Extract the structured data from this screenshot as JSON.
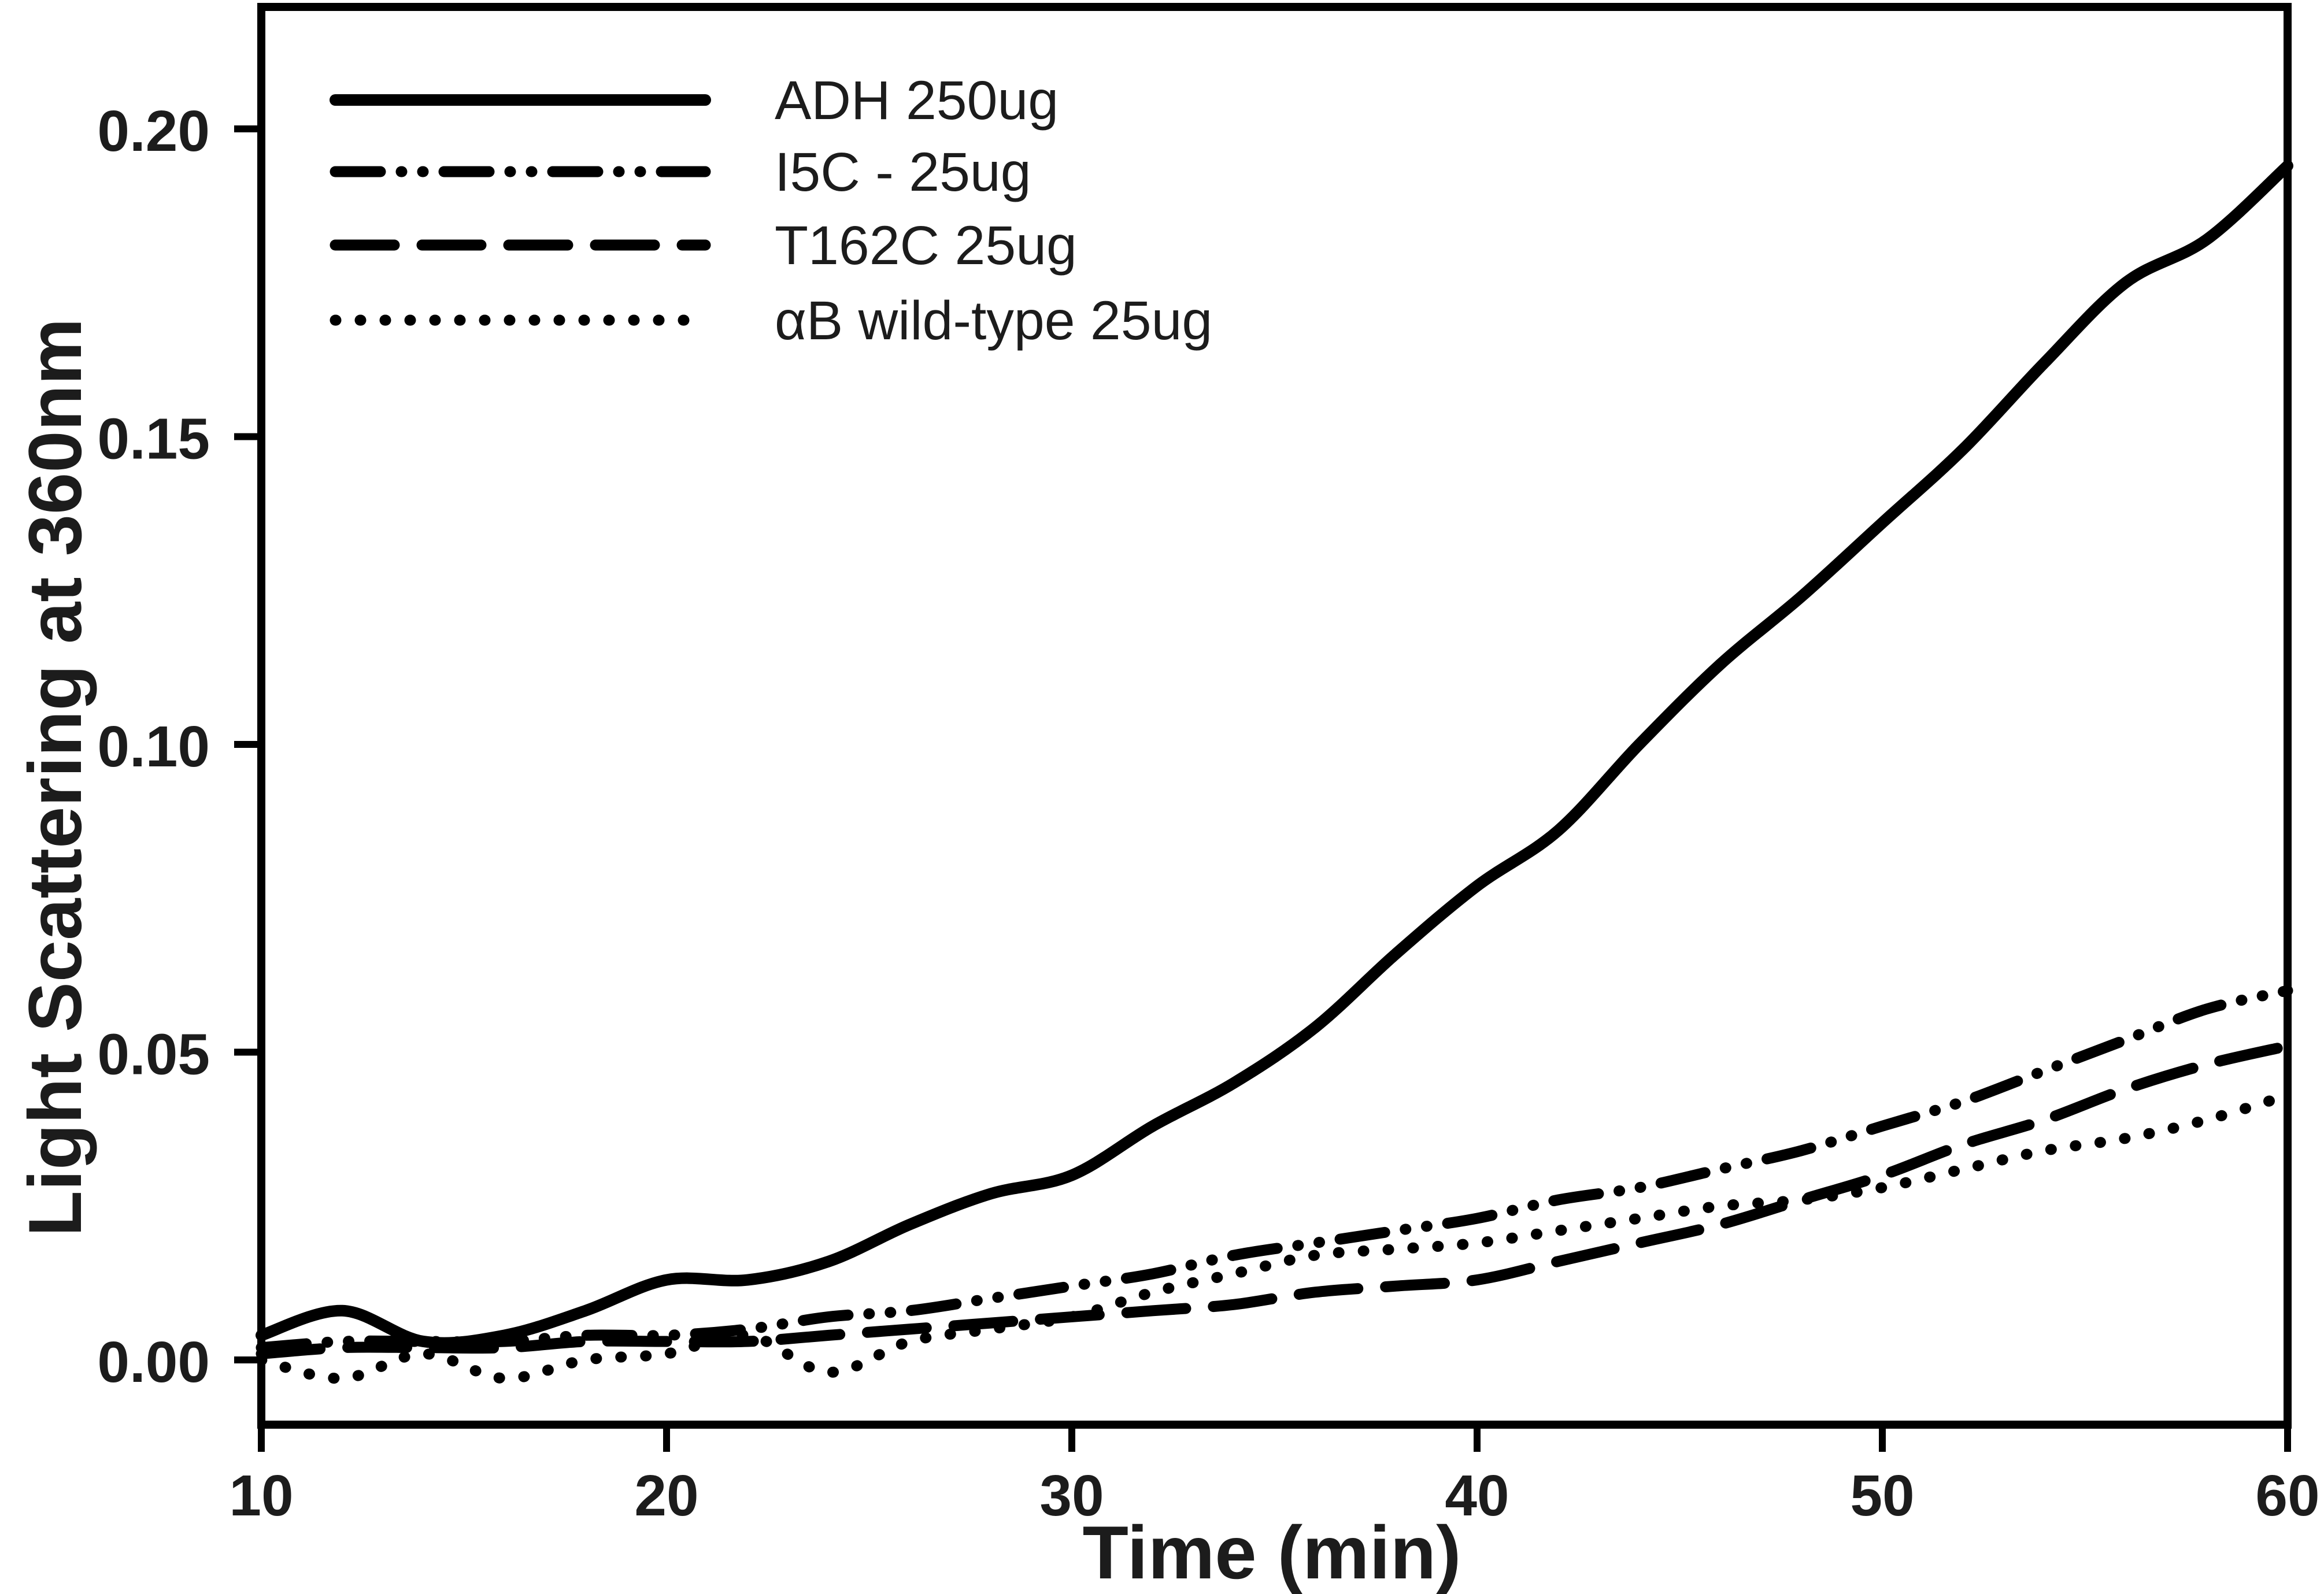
{
  "figure": {
    "background": "#ffffff",
    "ink": "#000000",
    "text_color": "#1c1c1c"
  },
  "chart_data": {
    "type": "line",
    "title": "",
    "xlabel": "Time (min)",
    "ylabel": "Light Scattering at 360nm",
    "grid": false,
    "legend_position": "top-left",
    "xlim": [
      10,
      60
    ],
    "ylim": [
      -0.0105,
      0.22
    ],
    "x_ticks": {
      "values": [
        10,
        20,
        30,
        40,
        50,
        60
      ],
      "labels": [
        "10",
        "20",
        "30",
        "40",
        "50",
        "60"
      ]
    },
    "y_ticks": {
      "values": [
        0.0,
        0.05,
        0.1,
        0.15,
        0.2
      ],
      "labels": [
        "0.00",
        "0.05",
        "0.10",
        "0.15",
        "0.20"
      ]
    },
    "x": [
      10,
      12,
      14,
      16,
      18,
      20,
      22,
      24,
      26,
      28,
      30,
      32,
      34,
      36,
      38,
      40,
      42,
      44,
      46,
      48,
      50,
      52,
      54,
      56,
      58,
      60
    ],
    "series": [
      {
        "name": "ADH 250ug",
        "style": "solid",
        "values": [
          0.004,
          0.008,
          0.003,
          0.004,
          0.008,
          0.013,
          0.013,
          0.016,
          0.022,
          0.027,
          0.03,
          0.038,
          0.045,
          0.054,
          0.066,
          0.077,
          0.086,
          0.1,
          0.113,
          0.124,
          0.136,
          0.148,
          0.162,
          0.175,
          0.182,
          0.194
        ]
      },
      {
        "name": "I5C - 25ug",
        "style": "dash-dot-dot",
        "values": [
          0.002,
          0.003,
          0.003,
          0.003,
          0.004,
          0.004,
          0.005,
          0.007,
          0.008,
          0.01,
          0.012,
          0.014,
          0.017,
          0.019,
          0.021,
          0.023,
          0.026,
          0.028,
          0.031,
          0.034,
          0.038,
          0.042,
          0.047,
          0.052,
          0.057,
          0.06
        ]
      },
      {
        "name": "T162C 25ug",
        "style": "dashed",
        "values": [
          0.001,
          0.002,
          0.002,
          0.002,
          0.003,
          0.003,
          0.003,
          0.004,
          0.005,
          0.006,
          0.007,
          0.008,
          0.009,
          0.011,
          0.012,
          0.013,
          0.016,
          0.019,
          0.022,
          0.026,
          0.03,
          0.035,
          0.039,
          0.044,
          0.048,
          0.051
        ]
      },
      {
        "name": "αB wild-type 25ug",
        "style": "dotted",
        "values": [
          0.0,
          -0.003,
          0.001,
          -0.003,
          0.0,
          0.001,
          0.004,
          -0.002,
          0.003,
          0.005,
          0.007,
          0.011,
          0.014,
          0.017,
          0.018,
          0.019,
          0.021,
          0.023,
          0.025,
          0.026,
          0.028,
          0.031,
          0.034,
          0.036,
          0.039,
          0.043
        ]
      }
    ]
  }
}
